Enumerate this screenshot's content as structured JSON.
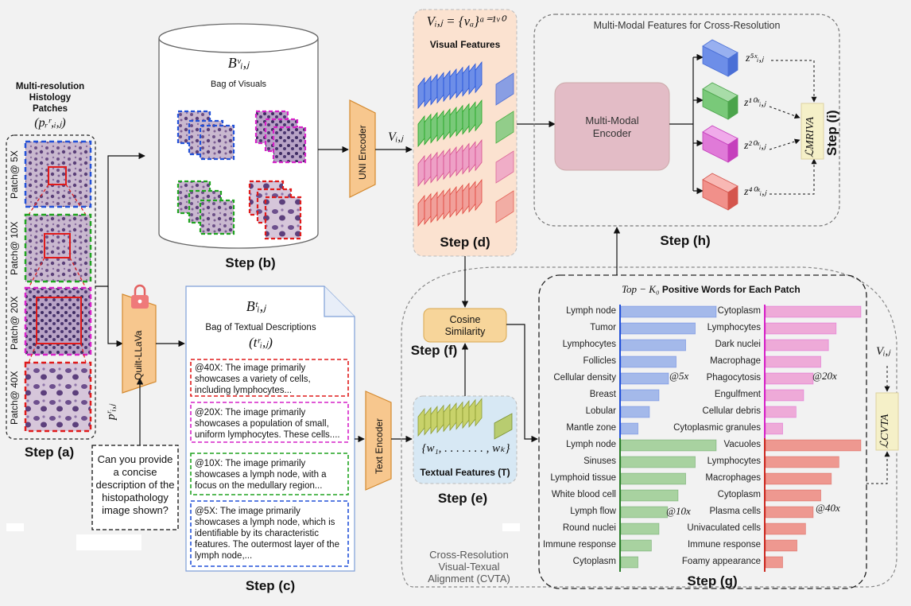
{
  "step_a": {
    "title_lines": [
      "Multi-resolution",
      "Histology",
      "Patches"
    ],
    "title_math": "(pᵣʳ,ᵢ,ⱼ)",
    "patch_labels": [
      "Patch@ 5X",
      "Patch@ 10X",
      "Patch@ 20X",
      "Patch@ 40X"
    ],
    "patch_var": "pʳᵢ,ⱼ",
    "step": "Step (a)"
  },
  "query": {
    "lines": [
      "Can you provide",
      "a concise",
      "description of the",
      "histopathology",
      "image shown?"
    ]
  },
  "llava": {
    "label": "Quilt-LLaVa"
  },
  "step_b": {
    "math": "Bᵛᵢ,ⱼ",
    "label": "Bag of Visuals",
    "step": "Step (b)"
  },
  "step_c": {
    "math": "Bᵗᵢ,ⱼ",
    "label": "Bag of Textual Descriptions",
    "math2": "(tʳᵢ,ⱼ)",
    "descriptions": [
      "@40X: The image primarily showcases a variety of cells, including lymphocytes...",
      "@20X: The image primarily showcases a population of small, uniform lymphocytes. These cells....",
      "@10X: The image primarily showcases a lymph node, with a focus on the medullary region...",
      "@5X: The image primarily showcases a lymph node, which is identifiable by its characteristic features. The outermost layer of the lymph node,..."
    ],
    "step": "Step (c)"
  },
  "uni": {
    "label": "UNI Encoder",
    "var": "Vᵢ,ⱼ"
  },
  "text_encoder": {
    "label": "Text Encoder"
  },
  "step_d": {
    "math": "Vᵢ,ⱼ = {vₐ}ᵃ⁼¹ᵛ⁰",
    "label": "Visual Features",
    "step": "Step (d)"
  },
  "step_e": {
    "math": "{w₁, . . . . . . . , wₖ}",
    "label": "Textual Features (T)",
    "step": "Step (e)"
  },
  "step_f": {
    "label": "Cosine Similarity",
    "step": "Step (f)"
  },
  "step_h": {
    "title": "Multi-Modal Features for Cross-Resolution",
    "encoder_lines": [
      "Multi-Modal",
      "Encoder"
    ],
    "z_labels": [
      "z⁵ˣᵢ,ⱼ",
      "z¹⁰ˣᵢ,ⱼ",
      "z²⁰ˣᵢ,ⱼ",
      "z⁴⁰ˣᵢ,ⱼ"
    ],
    "loss": "ℒMRIVA",
    "step_i": "Step (i)",
    "step": "Step (h)"
  },
  "cvta": {
    "lines": [
      "Cross-Resolution",
      "Visual-Texual",
      "Alignment (CVTA)"
    ],
    "loss": "ℒCVTA",
    "var": "Vᵢ,ⱼ"
  },
  "step_g": {
    "title_math": "Top − K₀",
    "title": "Positive Words for Each Patch",
    "step": "Step (g)"
  },
  "chart_data": {
    "type": "bar",
    "title": "Top − K0 Positive Words for Each Patch",
    "panels": [
      {
        "tag": "@5x",
        "color": "#a4b9ea",
        "axis": "#2251d8",
        "categories": [
          "Lymph node",
          "Tumor",
          "Lymphocytes",
          "Follicles",
          "Cellular density",
          "Breast",
          "Lobular",
          "Mantle zone"
        ],
        "values": [
          1.0,
          0.78,
          0.68,
          0.58,
          0.5,
          0.4,
          0.3,
          0.18
        ]
      },
      {
        "tag": "@20x",
        "color": "#eeaad8",
        "axis": "#d622c8",
        "categories": [
          "Cytoplasm",
          "Lymphocytes",
          "Dark nuclei",
          "Macrophage",
          "Phagocytosis",
          "Engulfment",
          "Cellular debris",
          "Cytoplasmic granules"
        ],
        "values": [
          1.0,
          0.74,
          0.66,
          0.58,
          0.5,
          0.4,
          0.32,
          0.18
        ]
      },
      {
        "tag": "@10x",
        "color": "#a8d2a0",
        "axis": "#2a7d2a",
        "categories": [
          "Lymph node",
          "Sinuses",
          "Lymphoid tissue",
          "White blood cell",
          "Lymph flow",
          "Round nuclei",
          "Immune response",
          "Cytoplasm"
        ],
        "values": [
          1.0,
          0.78,
          0.68,
          0.6,
          0.49,
          0.4,
          0.32,
          0.18
        ]
      },
      {
        "tag": "@40x",
        "color": "#ee9890",
        "axis": "#cc2a22",
        "categories": [
          "Vacuoles",
          "Lymphocytes",
          "Macrophages",
          "Cytoplasm",
          "Plasma cells",
          "Univaculated cells",
          "Immune response",
          "Foamy appearance"
        ],
        "values": [
          1.0,
          0.77,
          0.69,
          0.58,
          0.5,
          0.42,
          0.33,
          0.18
        ]
      }
    ]
  }
}
